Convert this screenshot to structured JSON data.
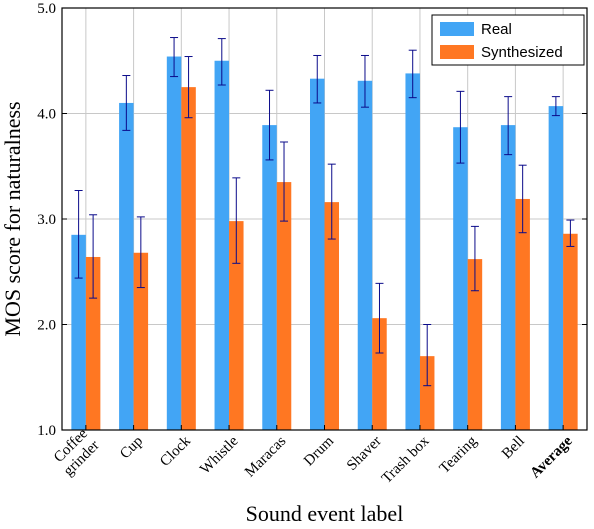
{
  "chart_data": {
    "type": "bar",
    "categories": [
      "Coffee grinder",
      "Cup",
      "Clock",
      "Whistle",
      "Maracas",
      "Drum",
      "Shaver",
      "Trash box",
      "Tearing",
      "Bell",
      "Average"
    ],
    "category_lines": [
      [
        "Coffee",
        "grinder"
      ],
      [
        "Cup"
      ],
      [
        "Clock"
      ],
      [
        "Whistle"
      ],
      [
        "Maracas"
      ],
      [
        "Drum"
      ],
      [
        "Shaver"
      ],
      [
        "Trash box"
      ],
      [
        "Tearing"
      ],
      [
        "Bell"
      ],
      [
        "Average"
      ]
    ],
    "bold_categories": [
      "Average"
    ],
    "series": [
      {
        "name": "Real",
        "color": "#42a5f5",
        "values": [
          2.85,
          4.1,
          4.54,
          4.5,
          3.89,
          4.33,
          4.31,
          4.38,
          3.87,
          3.89,
          4.07
        ],
        "err_low": [
          2.44,
          3.84,
          4.35,
          4.27,
          3.56,
          4.1,
          4.06,
          4.15,
          3.53,
          3.61,
          3.98
        ],
        "err_high": [
          3.27,
          4.36,
          4.72,
          4.71,
          4.22,
          4.55,
          4.55,
          4.6,
          4.21,
          4.16,
          4.16
        ]
      },
      {
        "name": "Synthesized",
        "color": "#ff7722",
        "values": [
          2.64,
          2.68,
          4.25,
          2.98,
          3.35,
          3.16,
          2.06,
          1.7,
          2.62,
          3.19,
          2.86
        ],
        "err_low": [
          2.25,
          2.35,
          3.96,
          2.58,
          2.98,
          2.81,
          1.73,
          1.42,
          2.32,
          2.87,
          2.74
        ],
        "err_high": [
          3.04,
          3.02,
          4.54,
          3.39,
          3.73,
          3.52,
          2.39,
          2.0,
          2.93,
          3.51,
          2.99
        ]
      }
    ],
    "error_bar_color": "#0a0a8a",
    "xlabel": "Sound event label",
    "ylabel": "MOS score for naturalness",
    "ylim": [
      1.0,
      5.0
    ],
    "yticks": [
      "1.0",
      "2.0",
      "3.0",
      "4.0",
      "5.0"
    ],
    "grid": true,
    "legend_position": "top-right"
  }
}
